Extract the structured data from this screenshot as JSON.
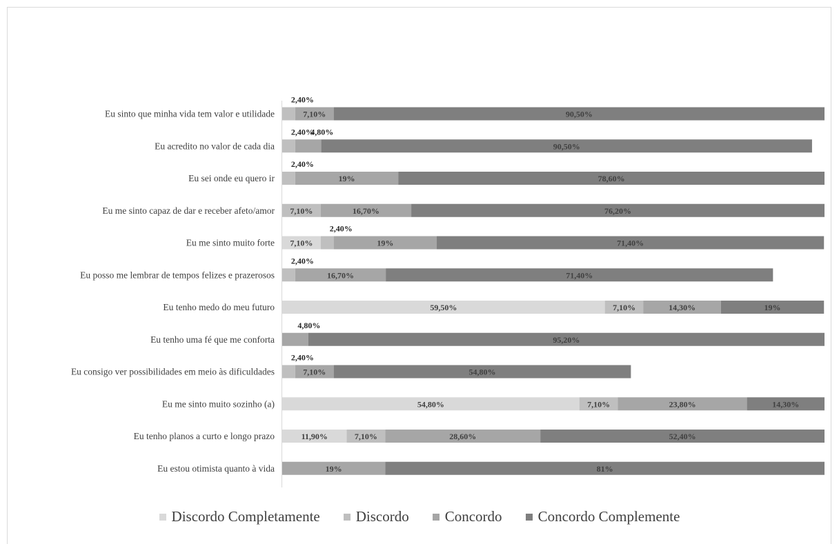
{
  "chart_data": {
    "type": "bar",
    "orientation": "horizontal",
    "stacked": true,
    "title": "",
    "xlabel": "",
    "ylabel": "",
    "xlim": [
      0,
      100
    ],
    "grid": false,
    "legend_position": "bottom",
    "categories": [
      "Eu sinto que minha vida tem valor e utilidade",
      "Eu acredito no valor de cada dia",
      "Eu sei onde eu quero ir",
      "Eu me sinto capaz de dar e receber afeto/amor",
      "Eu me sinto muito forte",
      "Eu posso me lembrar de tempos felizes e prazerosos",
      "Eu tenho medo do meu futuro",
      "Eu tenho uma fé que me conforta",
      "Eu consigo ver possibilidades em meio às dificuldades",
      "Eu me sinto muito sozinho (a)",
      "Eu tenho planos a curto e longo prazo",
      "Eu estou otimista quanto à vida"
    ],
    "series": [
      {
        "name": "Discordo Completamente",
        "color": "#d9d9d9",
        "values": [
          0,
          0,
          0,
          0,
          7.1,
          0,
          59.5,
          0,
          0,
          54.8,
          11.9,
          0
        ],
        "labels": [
          "",
          "",
          "",
          "",
          "7,10%",
          "",
          "59,50%",
          "",
          "",
          "54,80%",
          "11,90%",
          ""
        ]
      },
      {
        "name": "Discordo",
        "color": "#bfbfbf",
        "values": [
          2.4,
          2.4,
          2.4,
          7.1,
          2.4,
          2.4,
          7.1,
          0,
          2.4,
          7.1,
          7.1,
          0
        ],
        "labels": [
          "2,40%",
          "2,40%",
          "2,40%",
          "7,10%",
          "2,40%",
          "2,40%",
          "7,10%",
          "",
          "2,40%",
          "7,10%",
          "7,10%",
          ""
        ]
      },
      {
        "name": "Concordo",
        "color": "#a6a6a6",
        "values": [
          7.1,
          4.8,
          19,
          16.7,
          19,
          16.7,
          14.3,
          4.8,
          7.1,
          23.8,
          28.6,
          19
        ],
        "labels": [
          "7,10%",
          "4,80%",
          "19%",
          "16,70%",
          "19%",
          "16,70%",
          "14,30%",
          "4,80%",
          "7,10%",
          "23,80%",
          "28,60%",
          "19%"
        ]
      },
      {
        "name": "Concordo Complemente",
        "color": "#7f7f7f",
        "values": [
          90.5,
          90.5,
          78.6,
          76.2,
          71.4,
          71.4,
          19,
          95.2,
          54.8,
          14.3,
          52.4,
          81
        ],
        "labels": [
          "90,50%",
          "90,50%",
          "78,60%",
          "76,20%",
          "71,40%",
          "71,40%",
          "19%",
          "95,20%",
          "54,80%",
          "14,30%",
          "52,40%",
          "81%"
        ]
      }
    ]
  }
}
